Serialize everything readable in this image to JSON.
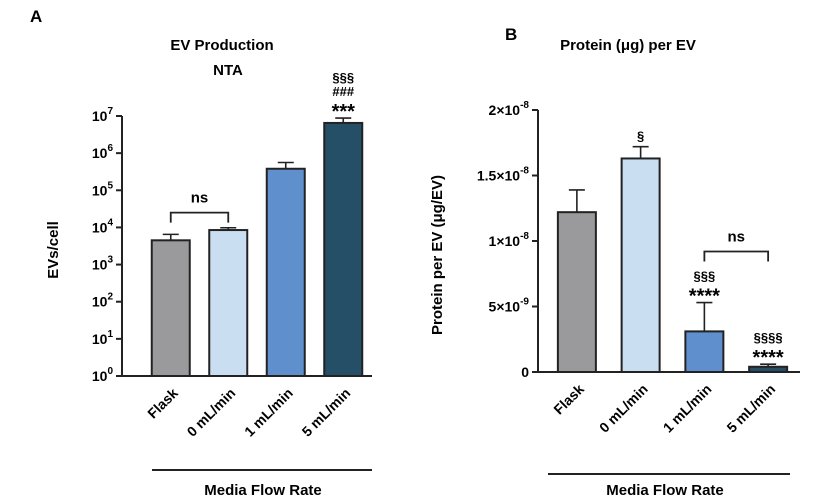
{
  "chart_data": [
    {
      "panel": "A",
      "type": "bar",
      "title": "EV Production",
      "subtitle": "NTA",
      "xlabel": "Media Flow Rate",
      "ylabel": "EVs/cell",
      "yscale": "log",
      "ylim": [
        1,
        10000000
      ],
      "yticks": [
        {
          "value": 1,
          "base": "10",
          "exp": "0"
        },
        {
          "value": 10,
          "base": "10",
          "exp": "1"
        },
        {
          "value": 100,
          "base": "10",
          "exp": "2"
        },
        {
          "value": 1000,
          "base": "10",
          "exp": "3"
        },
        {
          "value": 10000,
          "base": "10",
          "exp": "4"
        },
        {
          "value": 100000,
          "base": "10",
          "exp": "5"
        },
        {
          "value": 1000000,
          "base": "10",
          "exp": "6"
        },
        {
          "value": 10000000,
          "base": "10",
          "exp": "7"
        }
      ],
      "categories": [
        "Flask",
        "0 mL/min",
        "1 mL/min",
        "5 mL/min"
      ],
      "values": [
        4500,
        8500,
        380000,
        6500000
      ],
      "error_upper": [
        6500,
        9800,
        560000,
        8800000
      ],
      "colors": [
        "#9a9a9d",
        "#c9def0",
        "#5f8fcc",
        "#244f66"
      ],
      "annotations": [
        {
          "bar": 3,
          "lines": [
            "§§§",
            "###",
            "***"
          ]
        }
      ],
      "brackets": [
        {
          "from": 0,
          "to": 1,
          "label": "ns",
          "at": 25000
        }
      ]
    },
    {
      "panel": "B",
      "type": "bar",
      "title": "Protein (μg) per EV",
      "xlabel": "Media Flow Rate",
      "ylabel": "Protein per EV (μg/EV)",
      "ylim": [
        0,
        2e-08
      ],
      "yticks": [
        {
          "value": 0,
          "text": "0"
        },
        {
          "value": 5e-09,
          "text": "5×10",
          "exp": "-9"
        },
        {
          "value": 1e-08,
          "text": "1×10",
          "exp": "-8"
        },
        {
          "value": 1.5e-08,
          "text": "1.5×10",
          "exp": "-8"
        },
        {
          "value": 2e-08,
          "text": "2×10",
          "exp": "-8"
        }
      ],
      "categories": [
        "Flask",
        "0 mL/min",
        "1 mL/min",
        "5 mL/min"
      ],
      "values": [
        1.22e-08,
        1.63e-08,
        3.1e-09,
        4e-10
      ],
      "error_upper": [
        1.39e-08,
        1.72e-08,
        5.3e-09,
        6e-10
      ],
      "colors": [
        "#9a9a9d",
        "#c9def0",
        "#5f8fcc",
        "#244f66"
      ],
      "annotations": [
        {
          "bar": 1,
          "lines": [
            "§"
          ]
        },
        {
          "bar": 2,
          "lines": [
            "§§§",
            "****"
          ]
        },
        {
          "bar": 3,
          "lines": [
            "§§§§",
            "****"
          ]
        }
      ],
      "brackets": [
        {
          "from": 2,
          "to": 3,
          "label": "ns",
          "at": 9.2e-09
        }
      ]
    }
  ]
}
